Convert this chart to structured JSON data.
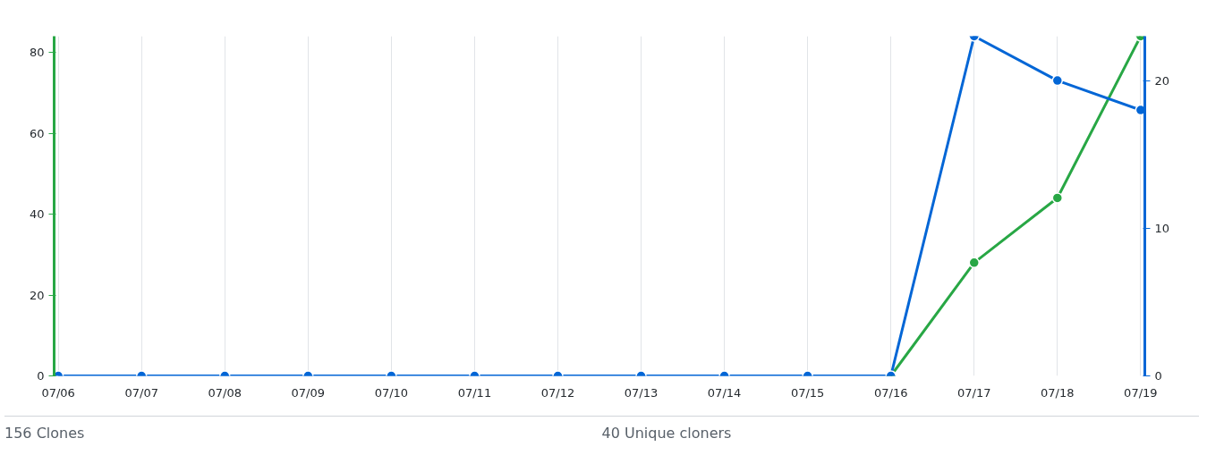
{
  "chart_data": {
    "type": "line",
    "categories": [
      "07/06",
      "07/07",
      "07/08",
      "07/09",
      "07/10",
      "07/11",
      "07/12",
      "07/13",
      "07/14",
      "07/15",
      "07/16",
      "07/17",
      "07/18",
      "07/19"
    ],
    "series": [
      {
        "color": "#28a745",
        "values": [
          null,
          null,
          null,
          null,
          null,
          null,
          null,
          null,
          null,
          null,
          0,
          28,
          44,
          84
        ]
      },
      {
        "color": "#0366d6",
        "axis": "y2",
        "values": [
          0,
          0,
          0,
          0,
          0,
          0,
          0,
          0,
          0,
          0,
          0,
          23,
          20,
          18
        ]
      }
    ],
    "ylim": [
      0,
      84
    ],
    "yticks": [
      0,
      20,
      40,
      60,
      80
    ],
    "y2lim": [
      0,
      23
    ],
    "y2ticks": [
      0,
      10,
      20
    ],
    "grid": "x",
    "marker": "circle",
    "annotations": [
      "156 Clones",
      "40 Unique cloners"
    ]
  }
}
